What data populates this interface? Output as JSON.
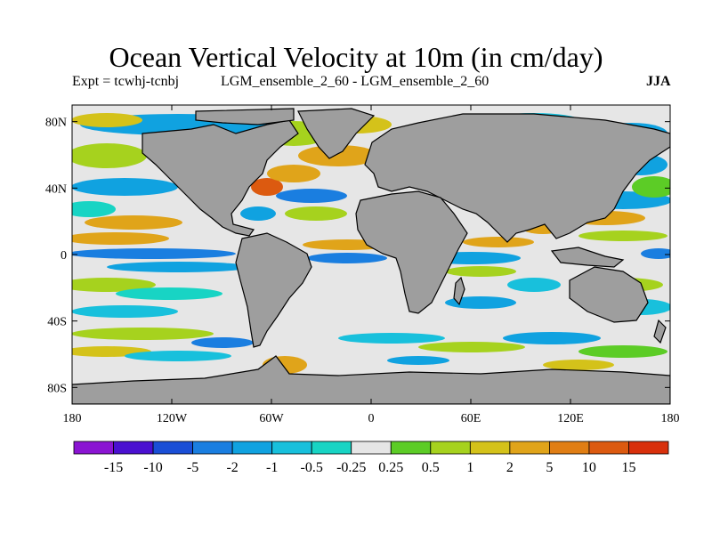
{
  "title": "Ocean Vertical Velocity at 10m (in cm/day)",
  "experiment_label": "Expt = tcwhj-tcnbj",
  "comparison_label": "LGM_ensemble_2_60 - LGM_ensemble_2_60",
  "season": "JJA",
  "map": {
    "longitude_labels": [
      "180",
      "120W",
      "60W",
      "0",
      "60E",
      "120E",
      "180"
    ],
    "longitude_values": [
      -180,
      -120,
      -60,
      0,
      60,
      120,
      180
    ],
    "latitude_labels": [
      "80N",
      "40N",
      "0",
      "40S",
      "80S"
    ],
    "latitude_values": [
      80,
      40,
      0,
      -40,
      -80
    ],
    "land_color": "#9e9e9e",
    "coastline_color": "#000000"
  },
  "colorbar": {
    "labels": [
      "-15",
      "-10",
      "-5",
      "-2",
      "-1",
      "-0.5",
      "-0.25",
      "0.25",
      "0.5",
      "1",
      "2",
      "5",
      "10",
      "15"
    ],
    "colors": [
      "#8a14d2",
      "#4a10d0",
      "#1a4ed6",
      "#1a7ee0",
      "#10a2e0",
      "#18c0dc",
      "#18d4c4",
      "#e6e6e6",
      "#5ccc26",
      "#a6d21e",
      "#d4c21a",
      "#e0a41a",
      "#e07e14",
      "#dc5a10",
      "#d8300c"
    ]
  }
}
